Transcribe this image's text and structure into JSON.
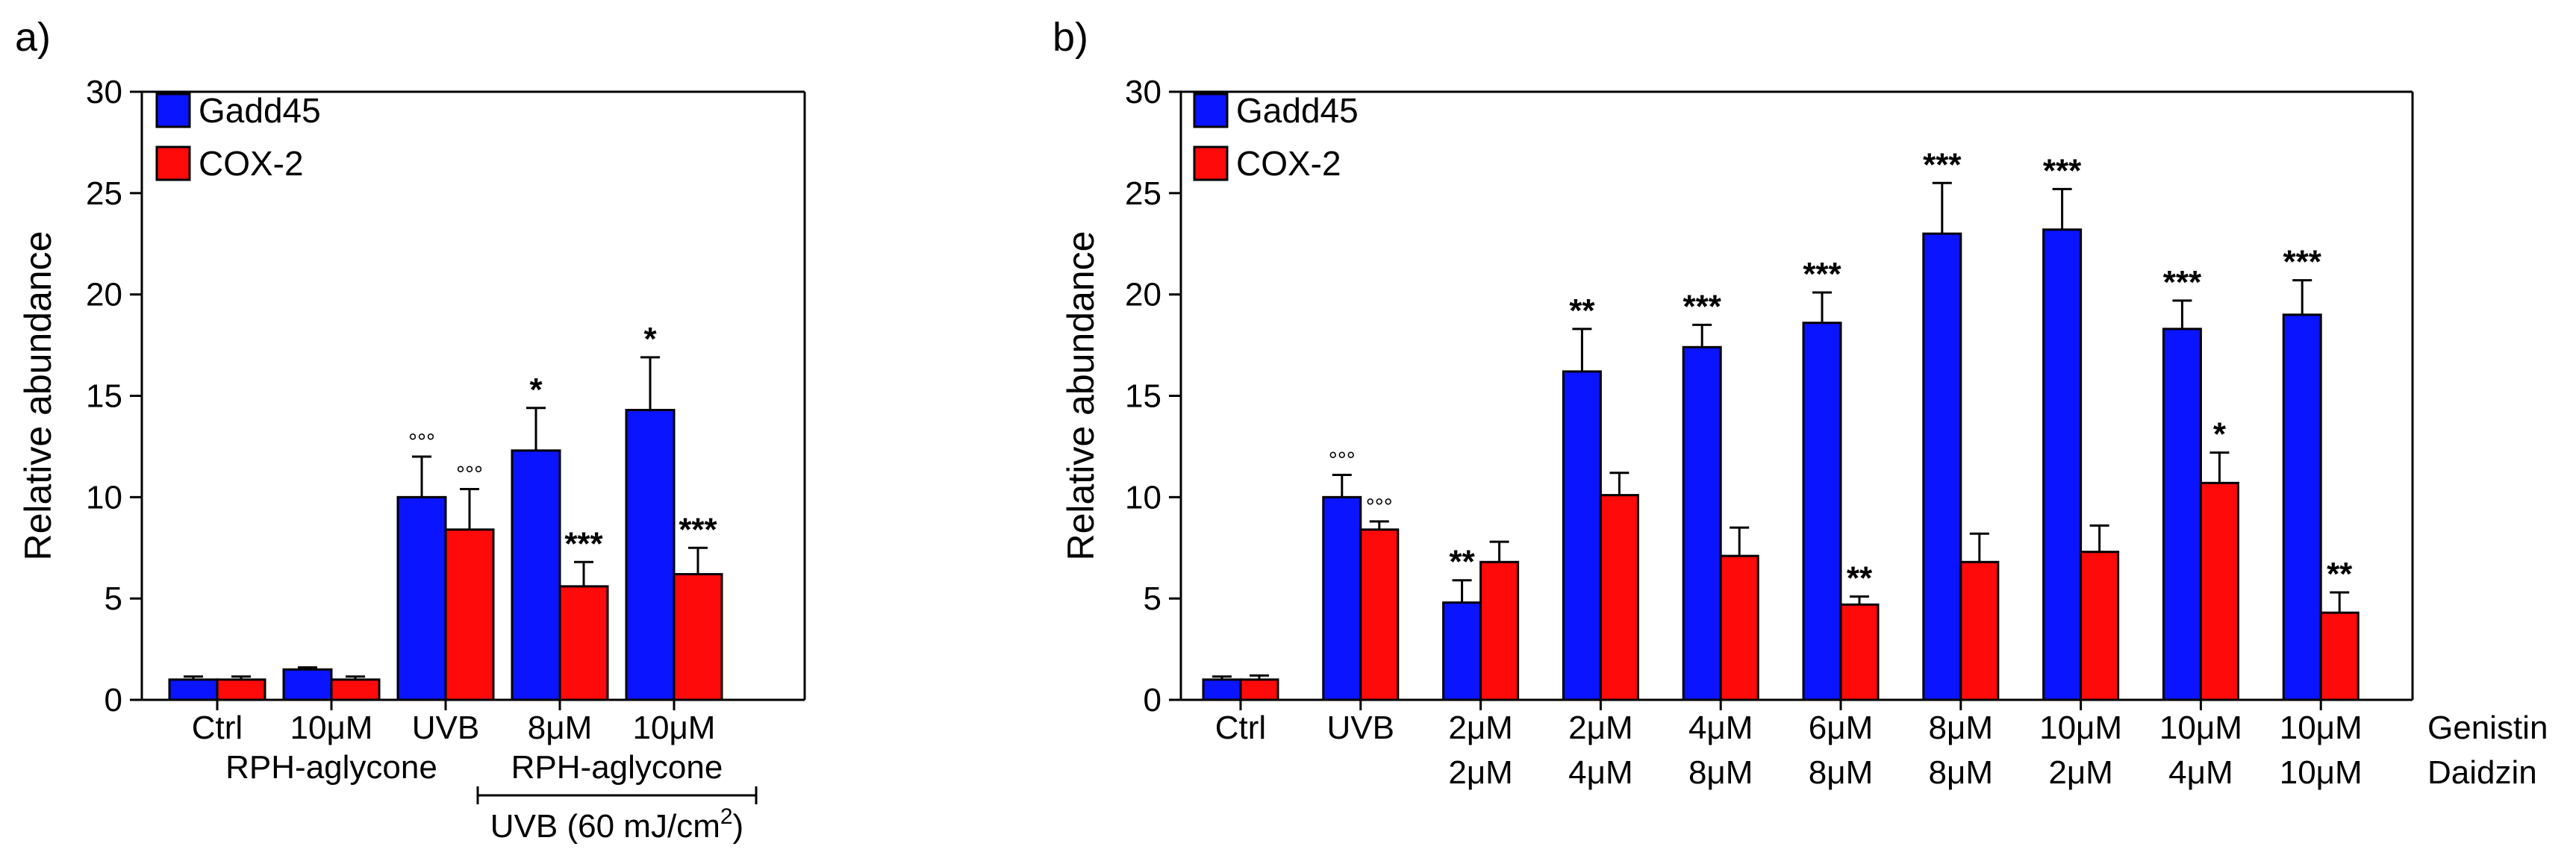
{
  "colors": {
    "gadd45": "#0a14ff",
    "cox2": "#ff0a0a",
    "axis": "#000000"
  },
  "chart_data": [
    {
      "type": "bar",
      "panel_label": "a)",
      "ylabel": "Relative abundance",
      "ylim": [
        0,
        30
      ],
      "yticks": [
        0,
        5,
        10,
        15,
        20,
        25,
        30
      ],
      "categories": [
        "Ctrl",
        "10μM",
        "UVB",
        "8μM",
        "10μM"
      ],
      "group_labels": [
        {
          "text": "RPH-aglycone",
          "cats": [
            1,
            1
          ]
        },
        {
          "text": "RPH-aglycone",
          "cats": [
            3,
            4
          ]
        }
      ],
      "bracket_label": {
        "text": "UVB (60 mJ/cm",
        "sup": "2",
        "close": ")",
        "cats": [
          3,
          4
        ]
      },
      "legend": [
        "Gadd45",
        "COX-2"
      ],
      "series": [
        {
          "name": "Gadd45",
          "values": [
            1.0,
            1.5,
            10.0,
            12.3,
            14.3
          ],
          "errors": [
            0.15,
            0.1,
            2.0,
            2.1,
            2.6
          ],
          "annotations": [
            "",
            "",
            "°°°",
            "*",
            "*"
          ]
        },
        {
          "name": "COX-2",
          "values": [
            1.0,
            1.0,
            8.4,
            5.6,
            6.2
          ],
          "errors": [
            0.15,
            0.15,
            2.0,
            1.2,
            1.3
          ],
          "annotations": [
            "",
            "",
            "°°°",
            "***",
            "***"
          ]
        }
      ]
    },
    {
      "type": "bar",
      "panel_label": "b)",
      "ylabel": "Relative abundance",
      "ylim": [
        0,
        30
      ],
      "yticks": [
        0,
        5,
        10,
        15,
        20,
        25,
        30
      ],
      "categories": [
        "Ctrl",
        "UVB",
        "2μM",
        "2μM",
        "4μM",
        "6μM",
        "8μM",
        "10μM",
        "10μM",
        "10μM"
      ],
      "categories2": [
        "",
        "",
        "2μM",
        "4μM",
        "8μM",
        "8μM",
        "8μM",
        "2μM",
        "4μM",
        "10μM"
      ],
      "row_labels": [
        "Genistin",
        "Daidzin"
      ],
      "legend": [
        "Gadd45",
        "COX-2"
      ],
      "series": [
        {
          "name": "Gadd45",
          "values": [
            1.0,
            10.0,
            4.8,
            16.2,
            17.4,
            18.6,
            23.0,
            23.2,
            18.3,
            19.0
          ],
          "errors": [
            0.15,
            1.1,
            1.1,
            2.1,
            1.1,
            1.5,
            2.5,
            2.0,
            1.4,
            1.7
          ],
          "annotations": [
            "",
            "°°°",
            "**",
            "**",
            "***",
            "***",
            "***",
            "***",
            "***",
            "***"
          ]
        },
        {
          "name": "COX-2",
          "values": [
            1.0,
            8.4,
            6.8,
            10.1,
            7.1,
            4.7,
            6.8,
            7.3,
            10.7,
            4.3
          ],
          "errors": [
            0.2,
            0.4,
            1.0,
            1.1,
            1.4,
            0.4,
            1.4,
            1.3,
            1.5,
            1.0
          ],
          "annotations": [
            "",
            "°°°",
            "",
            "",
            "",
            "**",
            "",
            "",
            "*",
            "**"
          ]
        }
      ]
    }
  ]
}
